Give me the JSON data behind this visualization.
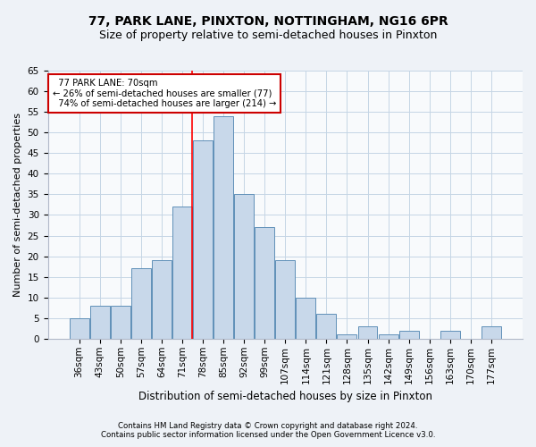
{
  "title1": "77, PARK LANE, PINXTON, NOTTINGHAM, NG16 6PR",
  "title2": "Size of property relative to semi-detached houses in Pinxton",
  "xlabel": "Distribution of semi-detached houses by size in Pinxton",
  "ylabel": "Number of semi-detached properties",
  "categories": [
    "36sqm",
    "43sqm",
    "50sqm",
    "57sqm",
    "64sqm",
    "71sqm",
    "78sqm",
    "85sqm",
    "92sqm",
    "99sqm",
    "107sqm",
    "114sqm",
    "121sqm",
    "128sqm",
    "135sqm",
    "142sqm",
    "149sqm",
    "156sqm",
    "163sqm",
    "170sqm",
    "177sqm"
  ],
  "values": [
    5,
    8,
    8,
    17,
    19,
    32,
    48,
    54,
    35,
    27,
    19,
    10,
    6,
    1,
    3,
    1,
    2,
    0,
    2,
    0,
    3
  ],
  "bar_color": "#c8d8ea",
  "bar_edge_color": "#6090b8",
  "reference_line_index": 5,
  "reference_label": "77 PARK LANE: 70sqm",
  "pct_smaller": "26% of semi-detached houses are smaller (77)",
  "pct_larger": "74% of semi-detached houses are larger (214)",
  "ylim": [
    0,
    65
  ],
  "yticks": [
    0,
    5,
    10,
    15,
    20,
    25,
    30,
    35,
    40,
    45,
    50,
    55,
    60,
    65
  ],
  "footnote1": "Contains HM Land Registry data © Crown copyright and database right 2024.",
  "footnote2": "Contains public sector information licensed under the Open Government Licence v3.0.",
  "bg_color": "#eef2f7",
  "plot_bg_color": "#f8fafc",
  "grid_color": "#c5d5e5",
  "title1_fontsize": 10,
  "title2_fontsize": 9,
  "xlabel_fontsize": 8.5,
  "ylabel_fontsize": 8,
  "tick_fontsize": 7.5,
  "annotation_box_color": "#ffffff",
  "annotation_box_edge": "#cc0000"
}
